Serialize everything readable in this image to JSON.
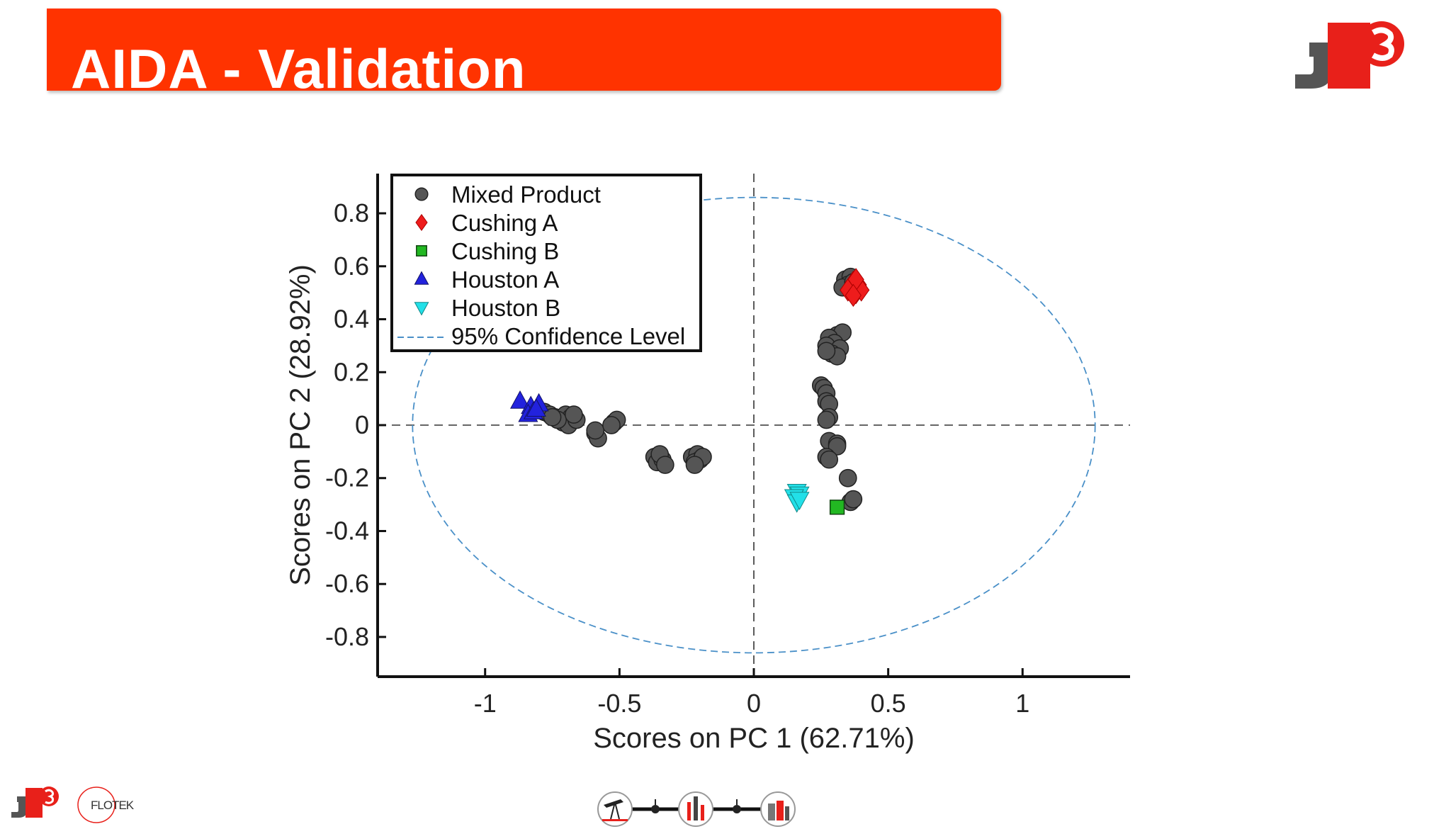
{
  "slide": {
    "title": "AIDA - Validation",
    "accent_color": "#ff3300"
  },
  "logos": {
    "top_right": {
      "letter": "J",
      "superscript": "3",
      "dark": "#555555",
      "red": "#e8201a"
    },
    "bottom_left": {
      "letter": "J",
      "superscript": "3"
    },
    "flotek": {
      "text": "FLOTEK"
    },
    "bottom_center": {
      "icon_names": [
        "oil-pump-icon",
        "refinery-icon",
        "storage-tank-icon"
      ]
    }
  },
  "chart_data": {
    "type": "scatter",
    "xlabel": "Scores on PC 1 (62.71%)",
    "ylabel": "Scores on PC 2 (28.92%)",
    "xlim": [
      -1.4,
      1.4
    ],
    "ylim": [
      -0.95,
      0.95
    ],
    "xticks": [
      -1,
      -0.5,
      0,
      0.5,
      1
    ],
    "xtick_labels": [
      "-1",
      "-0.5",
      "0",
      "0.5",
      "1"
    ],
    "yticks": [
      0.8,
      0.6,
      0.4,
      0.2,
      0,
      -0.2,
      -0.4,
      -0.6,
      -0.8
    ],
    "ytick_labels": [
      "0.8",
      "0.6",
      "0.4",
      "0.2",
      "0",
      "-0.2",
      "-0.4",
      "-0.6",
      "-0.8"
    ],
    "legend_position": "top-left",
    "series": [
      {
        "name": "Mixed Product",
        "marker": "circle",
        "color": "#555555",
        "points": [
          [
            -0.78,
            0.05
          ],
          [
            -0.76,
            0.04
          ],
          [
            -0.74,
            0.03
          ],
          [
            -0.72,
            0.02
          ],
          [
            -0.7,
            0.04
          ],
          [
            -0.68,
            0.03
          ],
          [
            -0.71,
            0.01
          ],
          [
            -0.69,
            0.0
          ],
          [
            -0.66,
            0.02
          ],
          [
            -0.73,
            0.02
          ],
          [
            -0.67,
            0.04
          ],
          [
            -0.75,
            0.03
          ],
          [
            -0.59,
            -0.03
          ],
          [
            -0.58,
            -0.05
          ],
          [
            -0.59,
            -0.02
          ],
          [
            -0.52,
            0.01
          ],
          [
            -0.51,
            0.02
          ],
          [
            -0.53,
            0.0
          ],
          [
            -0.37,
            -0.12
          ],
          [
            -0.36,
            -0.14
          ],
          [
            -0.34,
            -0.13
          ],
          [
            -0.35,
            -0.11
          ],
          [
            -0.33,
            -0.15
          ],
          [
            -0.23,
            -0.12
          ],
          [
            -0.21,
            -0.11
          ],
          [
            -0.2,
            -0.13
          ],
          [
            -0.22,
            -0.14
          ],
          [
            -0.19,
            -0.12
          ],
          [
            -0.22,
            -0.15
          ],
          [
            0.34,
            0.55
          ],
          [
            0.36,
            0.56
          ],
          [
            0.35,
            0.53
          ],
          [
            0.33,
            0.52
          ],
          [
            0.37,
            0.54
          ],
          [
            0.31,
            0.34
          ],
          [
            0.33,
            0.35
          ],
          [
            0.28,
            0.33
          ],
          [
            0.3,
            0.31
          ],
          [
            0.27,
            0.3
          ],
          [
            0.32,
            0.29
          ],
          [
            0.29,
            0.27
          ],
          [
            0.31,
            0.26
          ],
          [
            0.27,
            0.28
          ],
          [
            0.25,
            0.15
          ],
          [
            0.26,
            0.14
          ],
          [
            0.27,
            0.12
          ],
          [
            0.27,
            0.09
          ],
          [
            0.28,
            0.08
          ],
          [
            0.28,
            0.03
          ],
          [
            0.27,
            0.02
          ],
          [
            0.28,
            -0.06
          ],
          [
            0.31,
            -0.07
          ],
          [
            0.31,
            -0.08
          ],
          [
            0.27,
            -0.12
          ],
          [
            0.28,
            -0.13
          ],
          [
            0.35,
            -0.2
          ],
          [
            0.36,
            -0.29
          ],
          [
            0.37,
            -0.28
          ]
        ]
      },
      {
        "name": "Cushing A",
        "marker": "diamond",
        "color": "#ee1c1c",
        "points": [
          [
            0.36,
            0.52
          ],
          [
            0.38,
            0.5
          ],
          [
            0.37,
            0.54
          ],
          [
            0.39,
            0.53
          ],
          [
            0.35,
            0.51
          ],
          [
            0.4,
            0.51
          ],
          [
            0.38,
            0.55
          ],
          [
            0.37,
            0.49
          ]
        ]
      },
      {
        "name": "Cushing B",
        "marker": "square",
        "color": "#22b822",
        "points": [
          [
            0.31,
            -0.31
          ]
        ]
      },
      {
        "name": "Houston A",
        "marker": "triangle-up",
        "color": "#2222dd",
        "points": [
          [
            -0.87,
            0.09
          ],
          [
            -0.83,
            0.07
          ],
          [
            -0.8,
            0.08
          ],
          [
            -0.84,
            0.04
          ],
          [
            -0.82,
            0.05
          ],
          [
            -0.81,
            0.06
          ]
        ]
      },
      {
        "name": "Houston B",
        "marker": "triangle-down",
        "color": "#22e0e8",
        "points": [
          [
            0.16,
            -0.25
          ],
          [
            0.17,
            -0.26
          ],
          [
            0.15,
            -0.27
          ],
          [
            0.16,
            -0.29
          ],
          [
            0.17,
            -0.28
          ]
        ]
      },
      {
        "name": "95% Confidence Level",
        "marker": "dashed-line",
        "color": "#4a90c8",
        "ellipse": {
          "cx": 0.0,
          "cy": 0.0,
          "rx": 1.27,
          "ry": 0.86
        }
      }
    ]
  }
}
